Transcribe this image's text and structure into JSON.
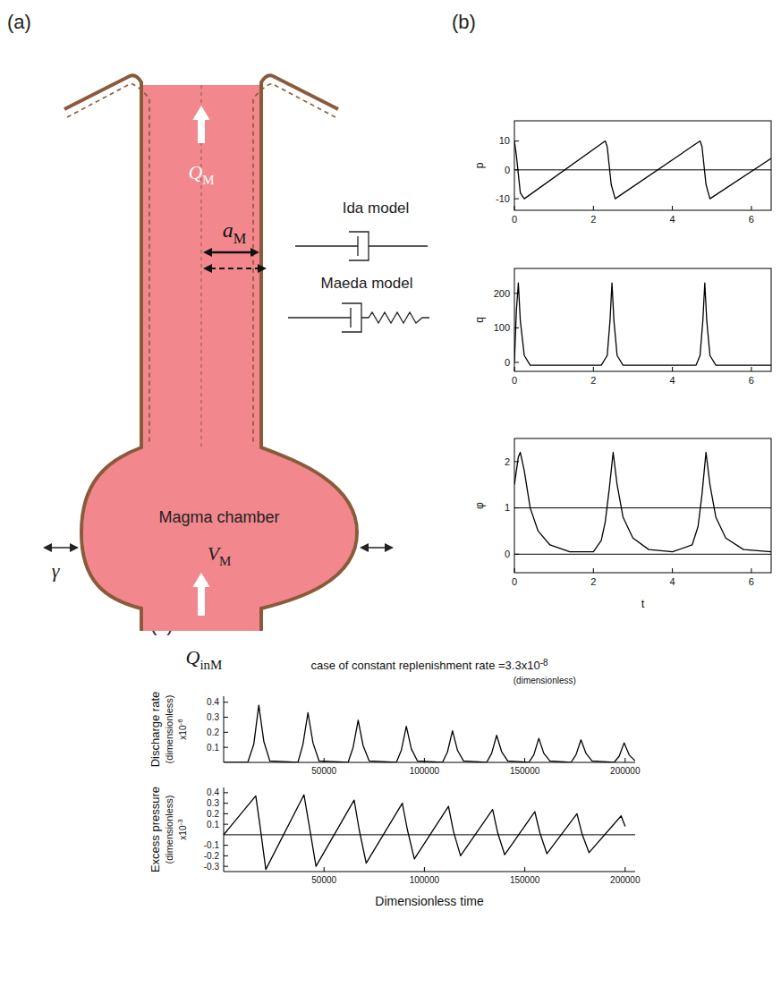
{
  "panel_labels": [
    "(a)",
    "(b)",
    "(c)"
  ],
  "diagram": {
    "flow_out": {
      "symbol": "Q",
      "sub": "M"
    },
    "radius": {
      "symbol": "a",
      "sub": "M"
    },
    "ida": "Ida model",
    "maeda": "Maeda model",
    "chamber": "Magma chamber",
    "volume": {
      "symbol": "V",
      "sub": "M"
    },
    "stiffness": "γ",
    "flow_in": {
      "symbol": "Q",
      "sub": "inM"
    }
  },
  "chart_data": [
    {
      "type": "line",
      "y_label": "p",
      "color": "#000000",
      "x": [
        0,
        0.05,
        0.15,
        0.25,
        2.3,
        2.35,
        2.45,
        2.55,
        4.7,
        4.75,
        4.85,
        4.95,
        6.5
      ],
      "values": [
        10,
        5,
        -8,
        -10,
        10,
        8,
        -5,
        -10,
        10,
        8,
        -5,
        -10,
        4
      ],
      "xlim": [
        0,
        6.5
      ],
      "xticks": [
        0,
        2,
        4,
        6
      ],
      "ylim": [
        -14,
        17
      ],
      "yticks": [
        -10,
        0,
        10
      ],
      "reference_lines": [
        0
      ]
    },
    {
      "type": "line",
      "y_label": "q",
      "color": "#000000",
      "x": [
        0,
        0.05,
        0.1,
        0.15,
        0.25,
        0.4,
        2.2,
        2.35,
        2.42,
        2.47,
        2.52,
        2.6,
        2.75,
        4.6,
        4.7,
        4.77,
        4.82,
        4.87,
        4.95,
        5.1,
        6.5
      ],
      "values": [
        0,
        150,
        230,
        120,
        20,
        -8,
        -8,
        20,
        120,
        230,
        120,
        20,
        -8,
        -8,
        20,
        120,
        230,
        120,
        20,
        -8,
        -8
      ],
      "xlim": [
        0,
        6.5
      ],
      "xticks": [
        0,
        2,
        4,
        6
      ],
      "ylim": [
        -26,
        272
      ],
      "yticks": [
        0,
        100,
        200
      ]
    },
    {
      "type": "line",
      "y_label": "φ",
      "x_label": "t",
      "color": "#000000",
      "x": [
        0,
        0.1,
        0.15,
        0.25,
        0.4,
        0.6,
        0.9,
        1.4,
        2.0,
        2.2,
        2.3,
        2.4,
        2.5,
        2.6,
        2.75,
        3.0,
        3.4,
        4.0,
        4.5,
        4.65,
        4.75,
        4.85,
        4.95,
        5.1,
        5.35,
        5.8,
        6.5
      ],
      "values": [
        1.5,
        2.1,
        2.2,
        1.8,
        1.0,
        0.5,
        0.2,
        0.05,
        0.05,
        0.3,
        0.7,
        1.4,
        2.2,
        1.5,
        0.8,
        0.35,
        0.1,
        0.05,
        0.2,
        0.6,
        1.3,
        2.2,
        1.5,
        0.8,
        0.35,
        0.1,
        0.05
      ],
      "xlim": [
        0,
        6.5
      ],
      "xticks": [
        0,
        2,
        4,
        6
      ],
      "ylim": [
        -0.4,
        2.5
      ],
      "yticks": [
        0,
        1,
        2
      ],
      "reference_lines": [
        0,
        1
      ]
    },
    {
      "type": "line",
      "title": "case of constant replenishment rate =3.3x10",
      "title_exp": "-8",
      "subtitle": "(dimensionless)",
      "y_label": "Discharge rate",
      "y_label_sub": "(dimensionless)",
      "y_multiplier": "x10",
      "y_multiplier_exp": "-6",
      "color": "#000000",
      "x": [
        0,
        12000,
        15000,
        17500,
        20000,
        23000,
        37000,
        39500,
        42000,
        44500,
        47500,
        62000,
        64500,
        67000,
        69500,
        72500,
        86000,
        88500,
        91000,
        93500,
        96500,
        109000,
        111500,
        114000,
        116500,
        119500,
        131000,
        133500,
        136000,
        138500,
        141500,
        152000,
        154500,
        157000,
        159500,
        162500,
        173000,
        175500,
        178000,
        180500,
        183500,
        194500,
        197000,
        199500,
        202000,
        205000
      ],
      "values": [
        0,
        0,
        0.12,
        0.38,
        0.14,
        0.01,
        0,
        0.12,
        0.33,
        0.13,
        0.01,
        0,
        0.1,
        0.28,
        0.11,
        0.01,
        0,
        0.08,
        0.24,
        0.09,
        0.01,
        0,
        0.07,
        0.21,
        0.08,
        0.01,
        0,
        0.06,
        0.18,
        0.07,
        0.01,
        0,
        0.05,
        0.16,
        0.06,
        0.01,
        0,
        0.05,
        0.15,
        0.06,
        0.01,
        0,
        0.04,
        0.13,
        0.05,
        0.01
      ],
      "xlim": [
        0,
        205000
      ],
      "xticks": [
        50000,
        100000,
        150000,
        200000
      ],
      "ylim": [
        0,
        0.44
      ],
      "yticks": [
        0.1,
        0.2,
        0.3,
        0.4
      ]
    },
    {
      "type": "line",
      "y_label": "Excess pressure",
      "y_label_sub": "(dimensionless)",
      "y_multiplier": "x10",
      "y_multiplier_exp": "-3",
      "x_label": "Dimensionless time",
      "color": "#000000",
      "x": [
        0,
        16000,
        18000,
        21000,
        40000,
        42500,
        46000,
        65000,
        67500,
        71000,
        89000,
        91500,
        95000,
        112000,
        114500,
        118000,
        134000,
        136500,
        140000,
        155000,
        157500,
        161000,
        176000,
        178500,
        182000,
        198000,
        200000
      ],
      "values": [
        0,
        0.37,
        0.1,
        -0.33,
        0.38,
        0.1,
        -0.3,
        0.33,
        0.05,
        -0.27,
        0.3,
        0.05,
        -0.23,
        0.27,
        0.03,
        -0.2,
        0.24,
        0.02,
        -0.19,
        0.22,
        0.02,
        -0.18,
        0.2,
        0.01,
        -0.17,
        0.18,
        0.08
      ],
      "xlim": [
        0,
        205000
      ],
      "xticks": [
        50000,
        100000,
        150000,
        200000
      ],
      "ylim": [
        -0.35,
        0.45
      ],
      "yticks": [
        -0.3,
        -0.2,
        -0.1,
        0.1,
        0.2,
        0.3,
        0.4
      ],
      "reference_lines": [
        0
      ]
    }
  ]
}
